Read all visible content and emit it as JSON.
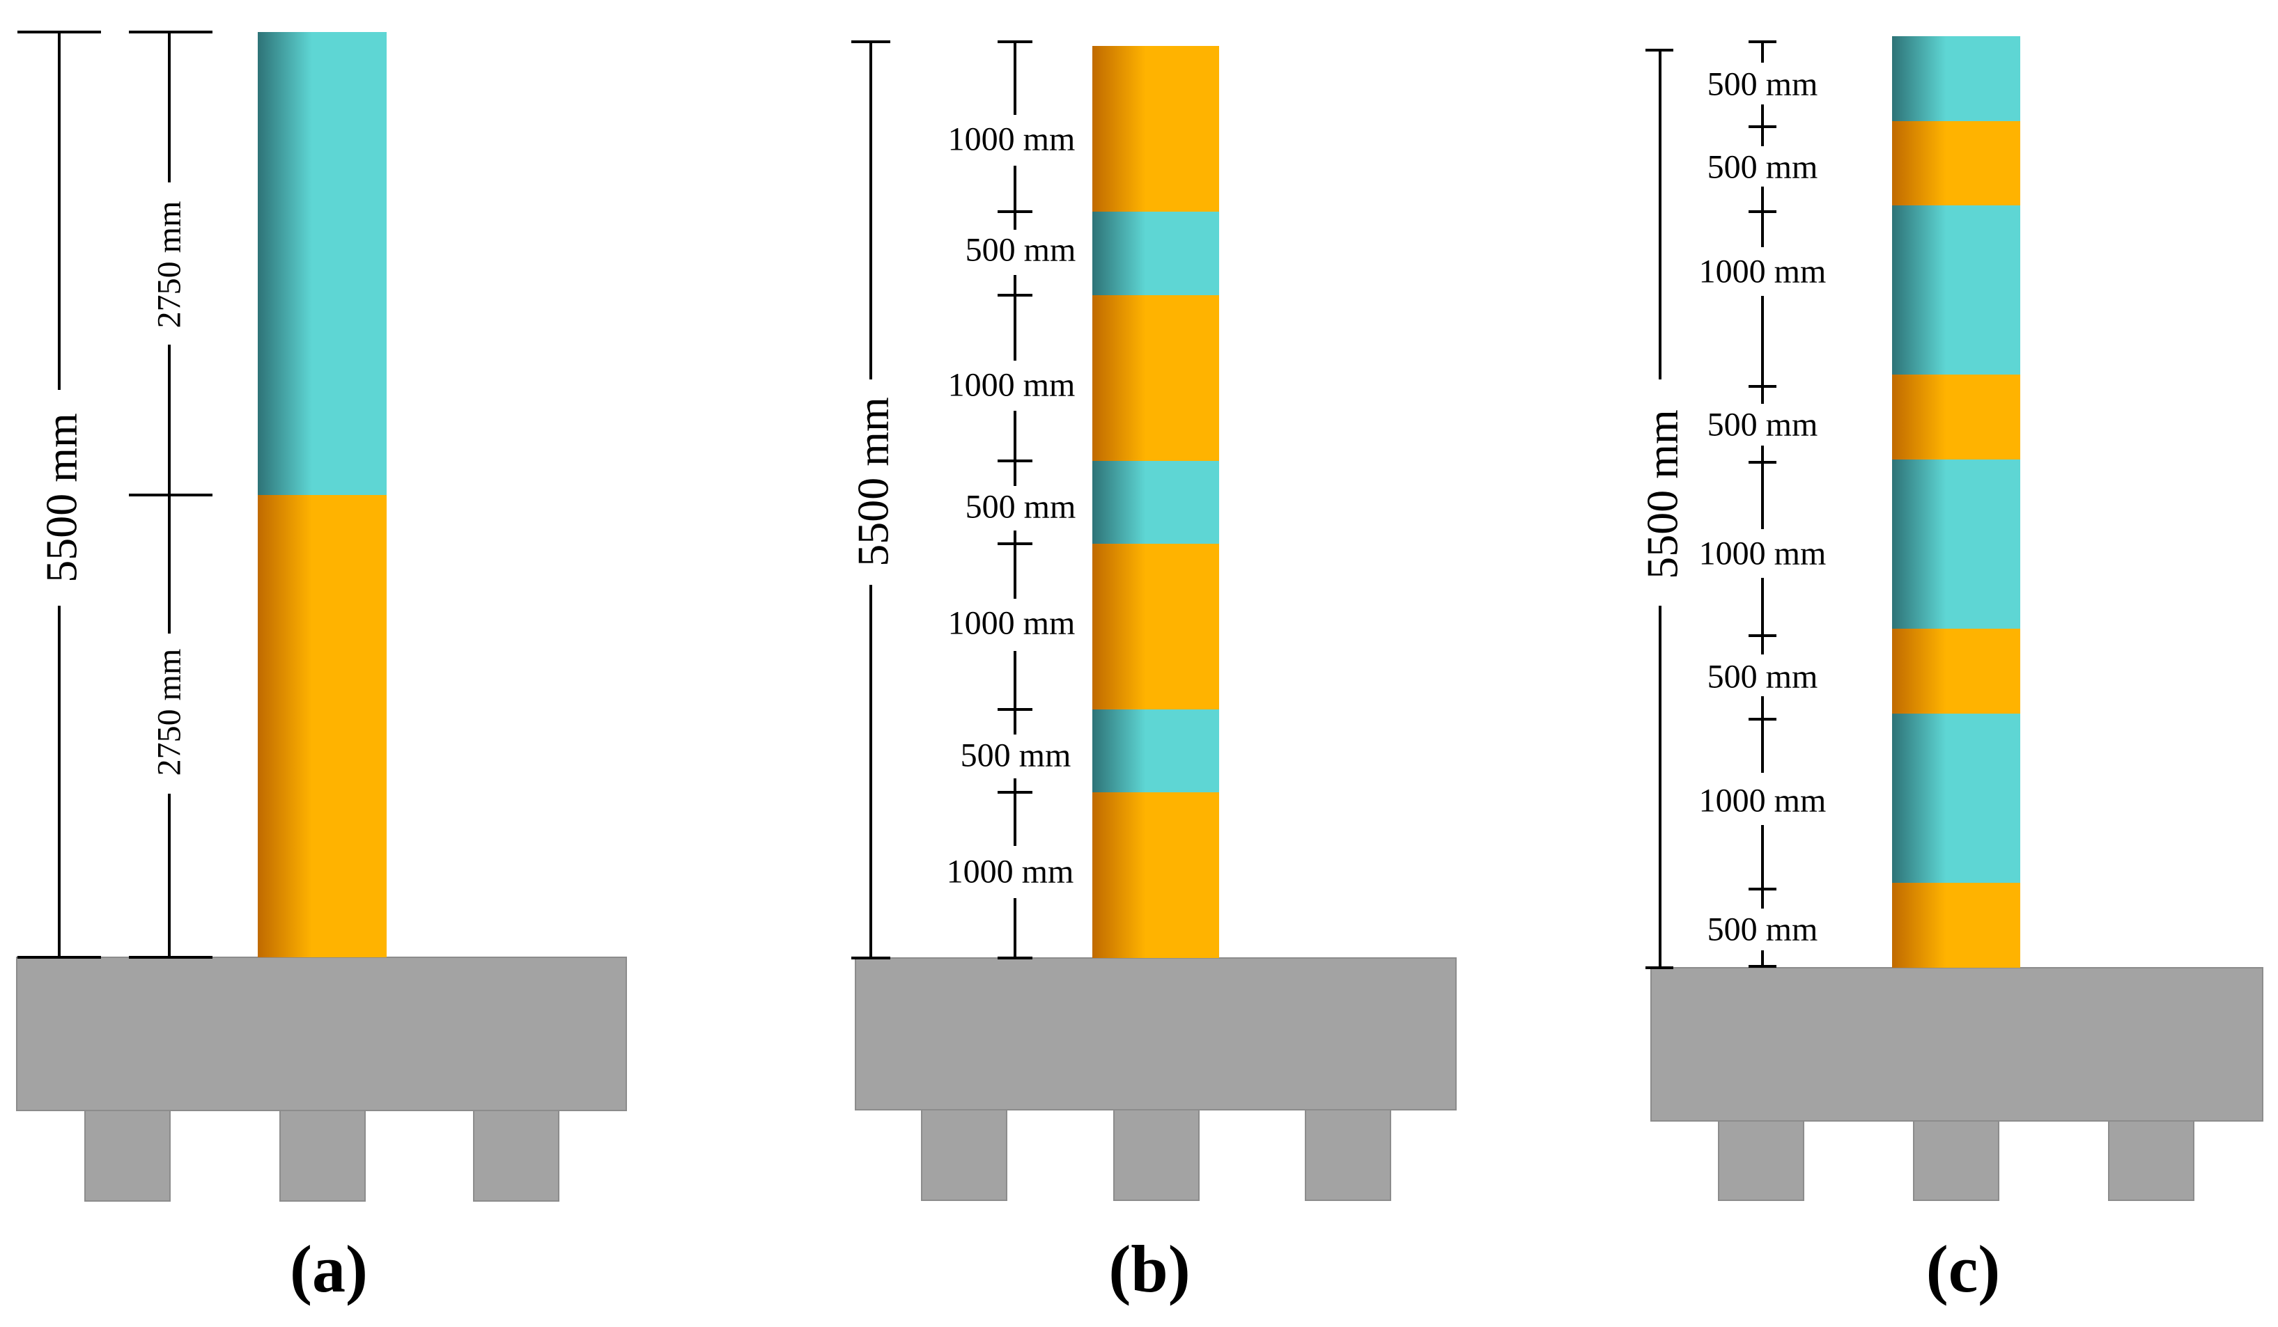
{
  "colors": {
    "orange": "#FFB300",
    "orange_dark": "#C06A00",
    "cyan": "#5ED6D4",
    "cyan_dark": "#2E7377",
    "base": "#A3A3A3",
    "base_edge": "#8C8C8C",
    "line": "#000000"
  },
  "panels": [
    {
      "caption": "(a)",
      "total_label": "5500 mm",
      "total_height_mm": 5500,
      "segments_bottom_to_top": [
        {
          "material": "orange",
          "mm": 2750,
          "label": "2750 mm"
        },
        {
          "material": "cyan",
          "mm": 2750,
          "label": "2750 mm"
        }
      ]
    },
    {
      "caption": "(b)",
      "total_label": "5500 mm",
      "total_height_mm": 5500,
      "segments_bottom_to_top": [
        {
          "material": "orange",
          "mm": 1000,
          "label": "1000 mm"
        },
        {
          "material": "cyan",
          "mm": 500,
          "label": "500 mm"
        },
        {
          "material": "orange",
          "mm": 1000,
          "label": "1000 mm"
        },
        {
          "material": "cyan",
          "mm": 500,
          "label": "500 mm"
        },
        {
          "material": "orange",
          "mm": 1000,
          "label": "1000 mm"
        },
        {
          "material": "cyan",
          "mm": 500,
          "label": "500 mm"
        },
        {
          "material": "orange",
          "mm": 1000,
          "label": "1000 mm"
        }
      ]
    },
    {
      "caption": "(c)",
      "total_label": "5500 mm",
      "total_height_mm": 5500,
      "segments_bottom_to_top": [
        {
          "material": "orange",
          "mm": 500,
          "label": "500 mm"
        },
        {
          "material": "cyan",
          "mm": 1000,
          "label": "1000 mm"
        },
        {
          "material": "orange",
          "mm": 500,
          "label": "500 mm"
        },
        {
          "material": "cyan",
          "mm": 1000,
          "label": "1000 mm"
        },
        {
          "material": "orange",
          "mm": 500,
          "label": "500 mm"
        },
        {
          "material": "cyan",
          "mm": 1000,
          "label": "1000 mm"
        },
        {
          "material": "orange",
          "mm": 500,
          "label": "500 mm"
        },
        {
          "material": "cyan",
          "mm": 500,
          "label": "500 mm"
        }
      ]
    }
  ]
}
